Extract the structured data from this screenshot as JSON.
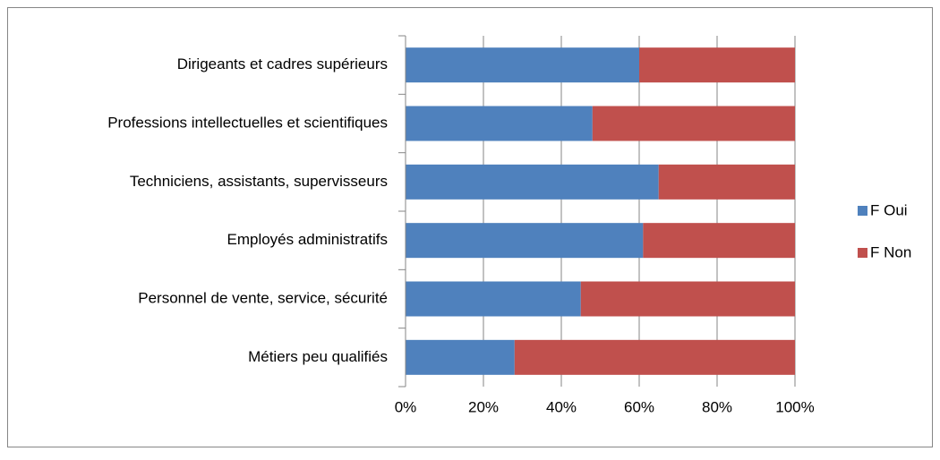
{
  "chart_data": {
    "type": "stacked-bar-horizontal",
    "categories": [
      "Dirigeants et cadres supérieurs",
      "Professions intellectuelles et scientifiques",
      "Techniciens, assistants, supervisseurs",
      "Employés administratifs",
      "Personnel de vente, service, sécurité",
      "Métiers peu qualifiés"
    ],
    "series": [
      {
        "name": "F Oui",
        "color": "#4f81bd",
        "values": [
          60,
          48,
          65,
          61,
          45,
          28
        ]
      },
      {
        "name": "F Non",
        "color": "#c0504d",
        "values": [
          40,
          52,
          35,
          39,
          55,
          72
        ]
      }
    ],
    "xlim": [
      0,
      100
    ],
    "xticks": [
      {
        "value": 0,
        "label": "0%"
      },
      {
        "value": 20,
        "label": "20%"
      },
      {
        "value": 40,
        "label": "40%"
      },
      {
        "value": 60,
        "label": "60%"
      },
      {
        "value": 80,
        "label": "80%"
      },
      {
        "value": 100,
        "label": "100%"
      }
    ],
    "grid": true,
    "legend": "right"
  }
}
